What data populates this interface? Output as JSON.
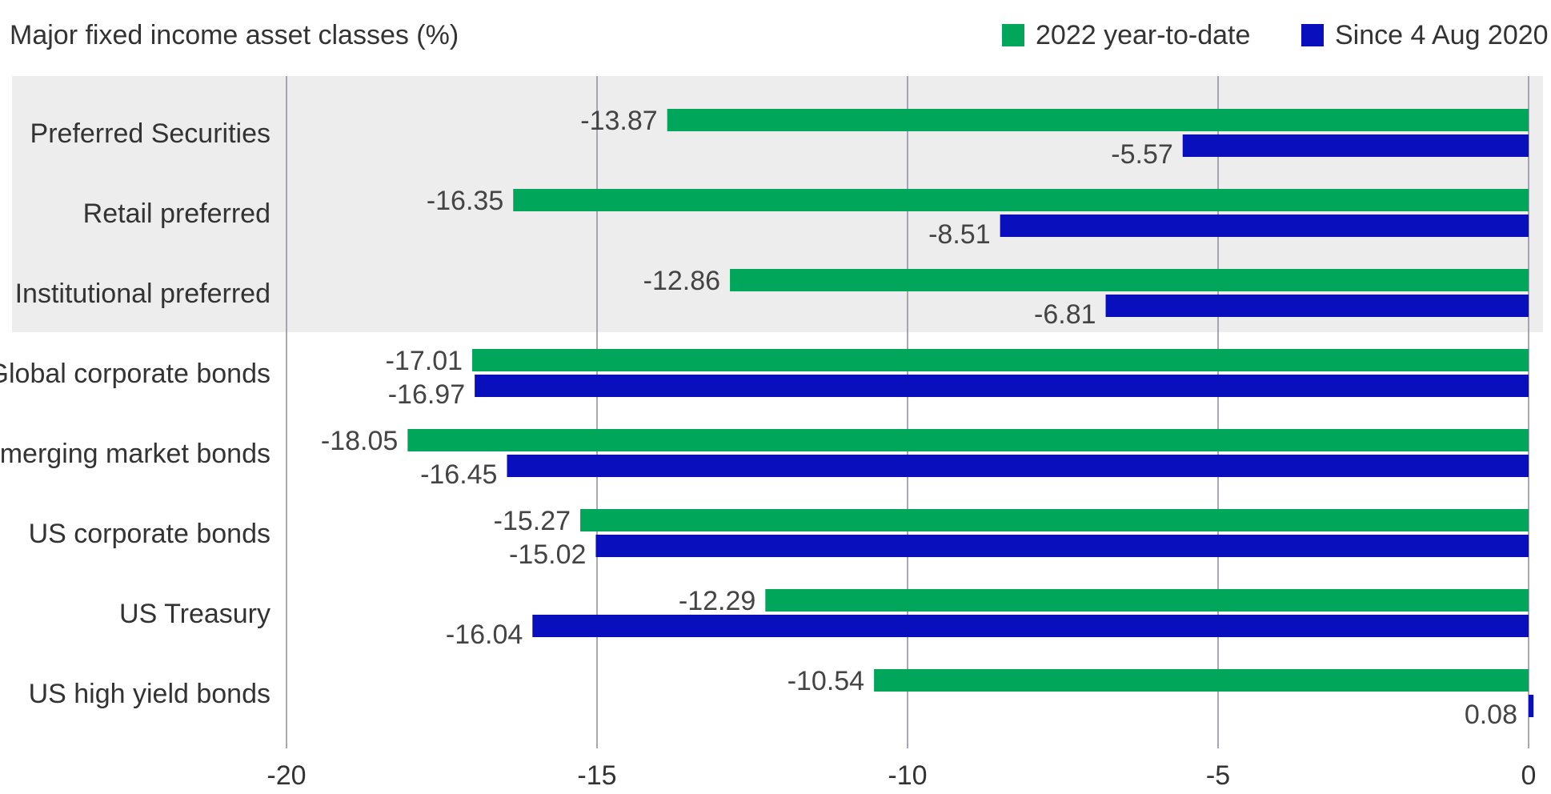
{
  "chart_data": {
    "type": "bar",
    "orientation": "horizontal",
    "title": "Major fixed income asset classes (%)",
    "categories": [
      "Preferred Securities",
      "Retail preferred",
      "Institutional preferred",
      "Global corporate bonds",
      "Emerging market bonds",
      "US corporate bonds",
      "US Treasury",
      "US high yield bonds"
    ],
    "series": [
      {
        "name": "2022 year-to-date",
        "color": "#00A65A",
        "values": [
          -13.87,
          -16.35,
          -12.86,
          -17.01,
          -18.05,
          -15.27,
          -12.29,
          -10.54
        ],
        "labels": [
          "-13.87",
          "-16.35",
          "-12.86",
          "-17.01",
          "-18.05",
          "-15.27",
          "-12.29",
          "-10.54"
        ]
      },
      {
        "name": "Since 4 Aug 2020",
        "color": "#0A0FBE",
        "values": [
          -5.57,
          -8.51,
          -6.81,
          -16.97,
          -16.45,
          -15.02,
          -16.04,
          0.08
        ],
        "labels": [
          "-5.57",
          "-8.51",
          "-6.81",
          "-16.97",
          "-16.45",
          "-15.02",
          "-16.04",
          "0.08"
        ]
      }
    ],
    "xlim": [
      -20,
      0
    ],
    "xticks": [
      -20,
      -15,
      -10,
      -5,
      0
    ],
    "xtick_labels": [
      "-20",
      "-15",
      "-10",
      "-5",
      "0"
    ],
    "highlighted_categories": [
      "Preferred Securities",
      "Retail preferred",
      "Institutional preferred"
    ],
    "highlight_color": "#EDEDED",
    "gridline_color": "#8C8CA0",
    "legend_position": "top-right",
    "grid": true
  }
}
